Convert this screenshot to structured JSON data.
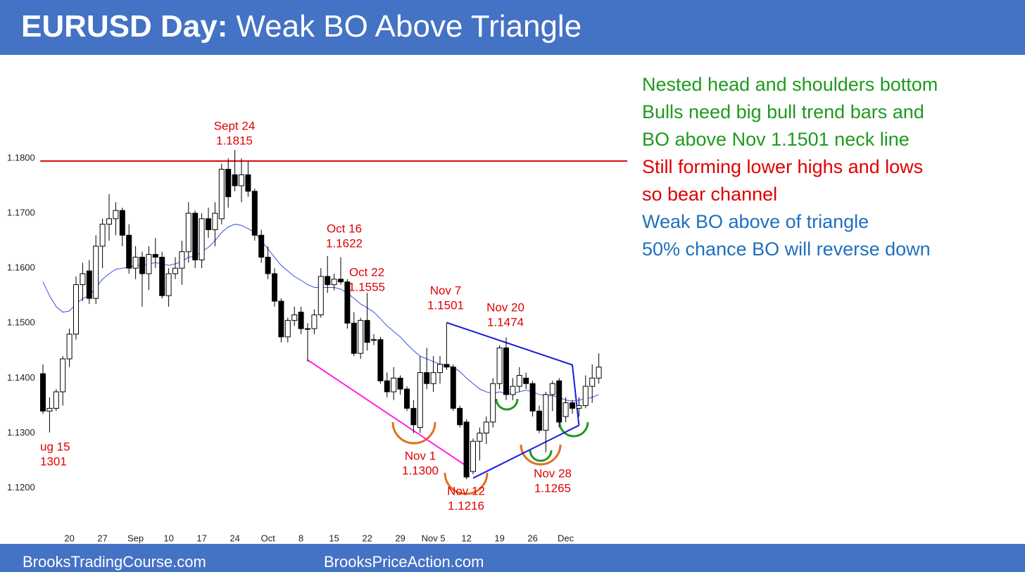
{
  "header": {
    "title_bold": "EURUSD Day:",
    "title_rest": "Weak BO Above Triangle"
  },
  "footer": {
    "left": "BrooksTradingCourse.com",
    "right": "BrooksPriceAction.com"
  },
  "notes": [
    {
      "text": "Nested head and shoulders bottom",
      "color": "#1e9a1e"
    },
    {
      "text": "Bulls need big bull trend bars and",
      "color": "#1e9a1e"
    },
    {
      "text": "BO above Nov 1.1501 neck line",
      "color": "#1e9a1e"
    },
    {
      "text": "Still forming lower highs and lows",
      "color": "#e00000"
    },
    {
      "text": "so bear channel",
      "color": "#e00000"
    },
    {
      "text": "Weak BO above of triangle",
      "color": "#1f6fbf"
    },
    {
      "text": "50% chance BO will reverse down",
      "color": "#1f6fbf"
    }
  ],
  "chart_data": {
    "type": "candlestick",
    "categories": [
      null,
      null,
      null,
      null,
      "20",
      null,
      null,
      null,
      null,
      "27",
      null,
      null,
      null,
      null,
      "Sep",
      null,
      null,
      null,
      null,
      "10",
      null,
      null,
      null,
      null,
      "17",
      null,
      null,
      null,
      null,
      "24",
      null,
      null,
      null,
      null,
      "Oct",
      null,
      null,
      null,
      null,
      "8",
      null,
      null,
      null,
      null,
      "15",
      null,
      null,
      null,
      null,
      "22",
      null,
      null,
      null,
      null,
      "29",
      null,
      null,
      null,
      null,
      "Nov 5",
      null,
      null,
      null,
      null,
      "12",
      null,
      null,
      null,
      null,
      "19",
      null,
      null,
      null,
      null,
      "26",
      null,
      null,
      null,
      null,
      "Dec",
      null,
      null,
      null,
      null,
      null
    ],
    "open": [
      1.1408,
      1.134,
      1.1345,
      1.1375,
      1.1435,
      1.148,
      1.157,
      1.1595,
      1.1545,
      1.164,
      1.168,
      1.169,
      1.1705,
      1.166,
      1.16,
      1.162,
      1.159,
      1.1625,
      1.162,
      1.155,
      1.159,
      1.16,
      1.163,
      1.17,
      1.1615,
      1.169,
      1.167,
      1.169,
      1.178,
      1.177,
      1.175,
      1.177,
      1.174,
      1.166,
      1.162,
      1.159,
      1.154,
      1.1475,
      1.1505,
      1.152,
      1.149,
      1.149,
      1.1515,
      1.1585,
      1.157,
      1.158,
      1.1575,
      1.15,
      1.1445,
      1.1505,
      1.147,
      1.147,
      1.1395,
      1.1375,
      1.14,
      1.138,
      1.1345,
      1.131,
      1.141,
      1.139,
      1.141,
      1.1425,
      1.142,
      1.1345,
      1.132,
      1.123,
      1.1285,
      1.13,
      1.132,
      1.139,
      1.1455,
      1.137,
      1.1385,
      1.14,
      1.139,
      1.134,
      1.1305,
      1.137,
      1.1395,
      1.133,
      1.1355,
      1.1345,
      1.135,
      1.1385,
      1.14
    ],
    "high": [
      1.1425,
      1.1365,
      1.138,
      1.144,
      1.149,
      1.1585,
      1.161,
      1.1615,
      1.166,
      1.169,
      1.1735,
      1.172,
      1.171,
      1.168,
      1.164,
      1.163,
      1.164,
      1.1655,
      1.163,
      1.16,
      1.162,
      1.165,
      1.172,
      1.1705,
      1.17,
      1.171,
      1.172,
      1.179,
      1.18,
      1.1815,
      1.18,
      1.1795,
      1.1745,
      1.167,
      1.164,
      1.16,
      1.1545,
      1.151,
      1.153,
      1.153,
      1.15,
      1.1525,
      1.16,
      1.1622,
      1.159,
      1.162,
      1.158,
      1.152,
      1.151,
      1.1555,
      1.148,
      1.1475,
      1.141,
      1.142,
      1.1405,
      1.1385,
      1.136,
      1.144,
      1.1455,
      1.144,
      1.144,
      1.1501,
      1.1425,
      1.135,
      1.1325,
      1.129,
      1.131,
      1.133,
      1.14,
      1.146,
      1.1474,
      1.14,
      1.142,
      1.141,
      1.1395,
      1.135,
      1.1375,
      1.1395,
      1.14,
      1.1365,
      1.136,
      1.1365,
      1.1405,
      1.1425,
      1.1445
    ],
    "low": [
      1.1335,
      1.1301,
      1.134,
      1.135,
      1.142,
      1.147,
      1.154,
      1.1535,
      1.1535,
      1.16,
      1.165,
      1.166,
      1.164,
      1.159,
      1.158,
      1.153,
      1.156,
      1.16,
      1.1545,
      1.153,
      1.158,
      1.157,
      1.161,
      1.16,
      1.16,
      1.1655,
      1.164,
      1.168,
      1.171,
      1.174,
      1.172,
      1.173,
      1.165,
      1.161,
      1.158,
      1.153,
      1.1465,
      1.1465,
      1.1495,
      1.148,
      1.143,
      1.148,
      1.151,
      1.1555,
      1.156,
      1.157,
      1.149,
      1.144,
      1.1435,
      1.145,
      1.146,
      1.139,
      1.1365,
      1.136,
      1.137,
      1.134,
      1.13,
      1.13,
      1.138,
      1.1375,
      1.139,
      1.1415,
      1.134,
      1.131,
      1.1216,
      1.1225,
      1.125,
      1.128,
      1.131,
      1.138,
      1.136,
      1.136,
      1.1375,
      1.138,
      1.133,
      1.13,
      1.1265,
      1.134,
      1.131,
      1.132,
      1.1335,
      1.133,
      1.1345,
      1.1355,
      1.139
    ],
    "close": [
      1.134,
      1.1345,
      1.1375,
      1.1435,
      1.148,
      1.157,
      1.159,
      1.1545,
      1.164,
      1.168,
      1.169,
      1.1705,
      1.166,
      1.16,
      1.162,
      1.159,
      1.1625,
      1.162,
      1.155,
      1.159,
      1.16,
      1.163,
      1.17,
      1.1615,
      1.169,
      1.167,
      1.17,
      1.178,
      1.173,
      1.175,
      1.177,
      1.174,
      1.166,
      1.162,
      1.159,
      1.154,
      1.1475,
      1.1505,
      1.1515,
      1.149,
      1.149,
      1.1515,
      1.1585,
      1.157,
      1.158,
      1.1575,
      1.15,
      1.1445,
      1.1505,
      1.1465,
      1.147,
      1.1395,
      1.1375,
      1.14,
      1.138,
      1.1345,
      1.1315,
      1.141,
      1.139,
      1.141,
      1.1425,
      1.142,
      1.1345,
      1.1315,
      1.122,
      1.1285,
      1.13,
      1.132,
      1.139,
      1.1455,
      1.137,
      1.1385,
      1.1405,
      1.139,
      1.134,
      1.1305,
      1.137,
      1.139,
      1.132,
      1.1355,
      1.1345,
      1.135,
      1.1385,
      1.14,
      1.142
    ],
    "ma": {
      "color": "#3a50e0",
      "values": [
        1.1575,
        1.155,
        1.153,
        1.152,
        1.1522,
        1.1535,
        1.1545,
        1.155,
        1.1565,
        1.158,
        1.159,
        1.1598,
        1.16,
        1.1602,
        1.1605,
        1.1605,
        1.1608,
        1.161,
        1.1608,
        1.1605,
        1.1608,
        1.1612,
        1.162,
        1.1622,
        1.163,
        1.1638,
        1.165,
        1.1665,
        1.1675,
        1.168,
        1.1678,
        1.1672,
        1.1665,
        1.165,
        1.1635,
        1.162,
        1.1605,
        1.1595,
        1.1585,
        1.1578,
        1.157,
        1.1565,
        1.1565,
        1.1565,
        1.1565,
        1.1562,
        1.1555,
        1.1545,
        1.1535,
        1.1528,
        1.152,
        1.1508,
        1.1495,
        1.1485,
        1.1475,
        1.1462,
        1.145,
        1.144,
        1.1435,
        1.143,
        1.1425,
        1.1423,
        1.142,
        1.1412,
        1.14,
        1.139,
        1.138,
        1.1375,
        1.1372,
        1.1375,
        1.1372,
        1.1372,
        1.1375,
        1.1378,
        1.1375,
        1.137,
        1.1368,
        1.1368,
        1.1365,
        1.136,
        1.1358,
        1.136,
        1.1362,
        1.1365,
        1.137
      ]
    },
    "trendlines": [
      {
        "color": "#e00000",
        "x": [
          -0.4,
          88.3
        ],
        "y": [
          1.1795,
          1.1795
        ]
      },
      {
        "color": "#ff22dd",
        "x": [
          40,
          64
        ],
        "y": [
          1.1433,
          1.124
        ]
      },
      {
        "color": "#1a1adc",
        "x": [
          61,
          80,
          81
        ],
        "y": [
          1.1501,
          1.1424,
          1.1314
        ]
      },
      {
        "color": "#1a1adc",
        "x": [
          65,
          81
        ],
        "y": [
          1.1218,
          1.1314
        ]
      }
    ],
    "ylim": [
      1.1115,
      1.196
    ],
    "yticks": [
      {
        "value": 1.12,
        "label": "1.1200"
      },
      {
        "value": 1.13,
        "label": "1.1300"
      },
      {
        "value": 1.14,
        "label": "1.1400"
      },
      {
        "value": 1.15,
        "label": "1.1500"
      },
      {
        "value": 1.16,
        "label": "1.1600"
      },
      {
        "value": 1.17,
        "label": "1.1700"
      },
      {
        "value": 1.18,
        "label": "1.1800"
      }
    ],
    "annotations": [
      {
        "lines": [
          "Sept 24",
          "1.1815"
        ]
      },
      {
        "lines": [
          "Oct 16",
          "1.1622"
        ]
      },
      {
        "lines": [
          "Oct 22",
          "1.1555"
        ]
      },
      {
        "lines": [
          "Nov 7",
          "1.1501"
        ]
      },
      {
        "lines": [
          "Nov 20",
          "1.1474"
        ]
      },
      {
        "lines": [
          "Nov 1",
          "1.1300"
        ]
      },
      {
        "lines": [
          "Nov 12",
          "1.1216"
        ]
      },
      {
        "lines": [
          "Nov 28",
          "1.1265"
        ]
      },
      {
        "lines": [
          "ug 15",
          "1301"
        ]
      }
    ],
    "annotation_color": "#e00000"
  }
}
